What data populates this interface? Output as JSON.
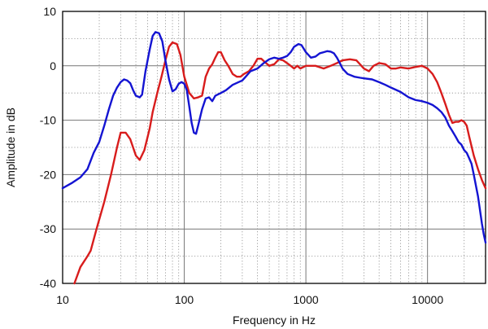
{
  "chart_data": {
    "type": "line",
    "xlabel": "Frequency in Hz",
    "ylabel": "Amplitude in dB",
    "xscale": "log",
    "xlim": [
      10,
      30000
    ],
    "ylim": [
      -40,
      10
    ],
    "grid": true,
    "legend": "none",
    "xticks": [
      {
        "value": 10,
        "label": "10"
      },
      {
        "value": 100,
        "label": "100"
      },
      {
        "value": 1000,
        "label": "1000"
      },
      {
        "value": 10000,
        "label": "10000"
      }
    ],
    "yticks": [
      {
        "value": 10,
        "label": "10"
      },
      {
        "value": 0,
        "label": "0"
      },
      {
        "value": -10,
        "label": "-10"
      },
      {
        "value": -20,
        "label": "-20"
      },
      {
        "value": -30,
        "label": "-30"
      },
      {
        "value": -40,
        "label": "-40"
      }
    ],
    "series": [
      {
        "color": "#d81c1c",
        "points": [
          [
            12.5,
            -40
          ],
          [
            14,
            -37
          ],
          [
            16,
            -35
          ],
          [
            17,
            -34
          ],
          [
            19,
            -30
          ],
          [
            22,
            -25
          ],
          [
            25,
            -20
          ],
          [
            28,
            -15
          ],
          [
            30,
            -12.3
          ],
          [
            33,
            -12.3
          ],
          [
            36,
            -13.5
          ],
          [
            40,
            -16.5
          ],
          [
            43,
            -17.3
          ],
          [
            47,
            -15.5
          ],
          [
            52,
            -11.5
          ],
          [
            55,
            -8.5
          ],
          [
            60,
            -5
          ],
          [
            65,
            -2
          ],
          [
            70,
            1
          ],
          [
            75,
            3.5
          ],
          [
            80,
            4.3
          ],
          [
            87,
            4
          ],
          [
            93,
            2
          ],
          [
            100,
            -2
          ],
          [
            110,
            -5
          ],
          [
            120,
            -6
          ],
          [
            130,
            -5.8
          ],
          [
            140,
            -5.5
          ],
          [
            150,
            -2
          ],
          [
            160,
            -0.5
          ],
          [
            170,
            0.3
          ],
          [
            180,
            1.5
          ],
          [
            190,
            2.5
          ],
          [
            200,
            2.5
          ],
          [
            215,
            1
          ],
          [
            230,
            0
          ],
          [
            250,
            -1.5
          ],
          [
            270,
            -2
          ],
          [
            290,
            -2
          ],
          [
            310,
            -1.5
          ],
          [
            340,
            -1
          ],
          [
            370,
            0
          ],
          [
            400,
            1.3
          ],
          [
            430,
            1.3
          ],
          [
            470,
            0.5
          ],
          [
            500,
            0
          ],
          [
            550,
            0.3
          ],
          [
            600,
            1.2
          ],
          [
            650,
            1
          ],
          [
            700,
            0.5
          ],
          [
            750,
            0
          ],
          [
            800,
            -0.5
          ],
          [
            850,
            0
          ],
          [
            900,
            -0.5
          ],
          [
            1000,
            0
          ],
          [
            1200,
            0
          ],
          [
            1400,
            -0.5
          ],
          [
            1600,
            0
          ],
          [
            1800,
            0.5
          ],
          [
            2000,
            1
          ],
          [
            2300,
            1.2
          ],
          [
            2600,
            1
          ],
          [
            3000,
            -0.5
          ],
          [
            3300,
            -1
          ],
          [
            3600,
            0
          ],
          [
            4000,
            0.5
          ],
          [
            4500,
            0.3
          ],
          [
            5000,
            -0.5
          ],
          [
            5500,
            -0.5
          ],
          [
            6000,
            -0.3
          ],
          [
            7000,
            -0.5
          ],
          [
            8000,
            -0.2
          ],
          [
            9000,
            0
          ],
          [
            10000,
            -0.5
          ],
          [
            11000,
            -1.5
          ],
          [
            12000,
            -3
          ],
          [
            13000,
            -5
          ],
          [
            14000,
            -7
          ],
          [
            15000,
            -9
          ],
          [
            16000,
            -10.5
          ],
          [
            17000,
            -10.3
          ],
          [
            18000,
            -10.3
          ],
          [
            19000,
            -10
          ],
          [
            20000,
            -10.3
          ],
          [
            21000,
            -11
          ],
          [
            22000,
            -13
          ],
          [
            24000,
            -16.5
          ],
          [
            26000,
            -19
          ],
          [
            28000,
            -21
          ],
          [
            30000,
            -22.5
          ]
        ]
      },
      {
        "color": "#1414d2",
        "points": [
          [
            10,
            -22.5
          ],
          [
            12,
            -21.5
          ],
          [
            14,
            -20.5
          ],
          [
            16,
            -19
          ],
          [
            18,
            -16
          ],
          [
            20,
            -14
          ],
          [
            22,
            -11
          ],
          [
            24,
            -8
          ],
          [
            26,
            -5.5
          ],
          [
            28,
            -4
          ],
          [
            30,
            -3
          ],
          [
            32,
            -2.5
          ],
          [
            34,
            -2.7
          ],
          [
            36,
            -3.2
          ],
          [
            38,
            -4.5
          ],
          [
            40,
            -5.5
          ],
          [
            43,
            -5.8
          ],
          [
            45,
            -5.3
          ],
          [
            48,
            -1
          ],
          [
            52,
            3
          ],
          [
            55,
            5.5
          ],
          [
            58,
            6.2
          ],
          [
            62,
            6
          ],
          [
            66,
            4.5
          ],
          [
            70,
            1
          ],
          [
            75,
            -2.5
          ],
          [
            80,
            -4.7
          ],
          [
            85,
            -4.3
          ],
          [
            90,
            -3.3
          ],
          [
            95,
            -3
          ],
          [
            100,
            -3.3
          ],
          [
            105,
            -4.5
          ],
          [
            110,
            -7.5
          ],
          [
            115,
            -10.5
          ],
          [
            120,
            -12.3
          ],
          [
            125,
            -12.5
          ],
          [
            130,
            -11
          ],
          [
            140,
            -8
          ],
          [
            150,
            -6
          ],
          [
            160,
            -5.8
          ],
          [
            170,
            -6.5
          ],
          [
            180,
            -5.5
          ],
          [
            200,
            -5
          ],
          [
            220,
            -4.5
          ],
          [
            250,
            -3.5
          ],
          [
            280,
            -3
          ],
          [
            300,
            -2.7
          ],
          [
            320,
            -2
          ],
          [
            350,
            -1
          ],
          [
            400,
            -0.5
          ],
          [
            450,
            0.5
          ],
          [
            500,
            1.2
          ],
          [
            550,
            1.5
          ],
          [
            600,
            1.3
          ],
          [
            650,
            1.5
          ],
          [
            700,
            1.8
          ],
          [
            750,
            2.5
          ],
          [
            800,
            3.5
          ],
          [
            870,
            4
          ],
          [
            920,
            3.8
          ],
          [
            1000,
            2.5
          ],
          [
            1100,
            1.5
          ],
          [
            1200,
            1.7
          ],
          [
            1300,
            2.3
          ],
          [
            1400,
            2.5
          ],
          [
            1500,
            2.7
          ],
          [
            1600,
            2.6
          ],
          [
            1700,
            2.3
          ],
          [
            1800,
            1.5
          ],
          [
            1900,
            0.5
          ],
          [
            2000,
            -0.5
          ],
          [
            2200,
            -1.5
          ],
          [
            2500,
            -2
          ],
          [
            2800,
            -2.2
          ],
          [
            3000,
            -2.3
          ],
          [
            3500,
            -2.5
          ],
          [
            4000,
            -3
          ],
          [
            4500,
            -3.5
          ],
          [
            5000,
            -4
          ],
          [
            6000,
            -4.8
          ],
          [
            7000,
            -5.8
          ],
          [
            8000,
            -6.3
          ],
          [
            9000,
            -6.5
          ],
          [
            10000,
            -6.8
          ],
          [
            11000,
            -7.2
          ],
          [
            12000,
            -7.8
          ],
          [
            13000,
            -8.5
          ],
          [
            14000,
            -9.5
          ],
          [
            15000,
            -11
          ],
          [
            16000,
            -12
          ],
          [
            17000,
            -13
          ],
          [
            18000,
            -14
          ],
          [
            19000,
            -14.5
          ],
          [
            20000,
            -15.5
          ],
          [
            21000,
            -16
          ],
          [
            22000,
            -17
          ],
          [
            23000,
            -18
          ],
          [
            24000,
            -20
          ],
          [
            26000,
            -24
          ],
          [
            28000,
            -29
          ],
          [
            29000,
            -31
          ],
          [
            30000,
            -32.5
          ]
        ]
      }
    ]
  }
}
